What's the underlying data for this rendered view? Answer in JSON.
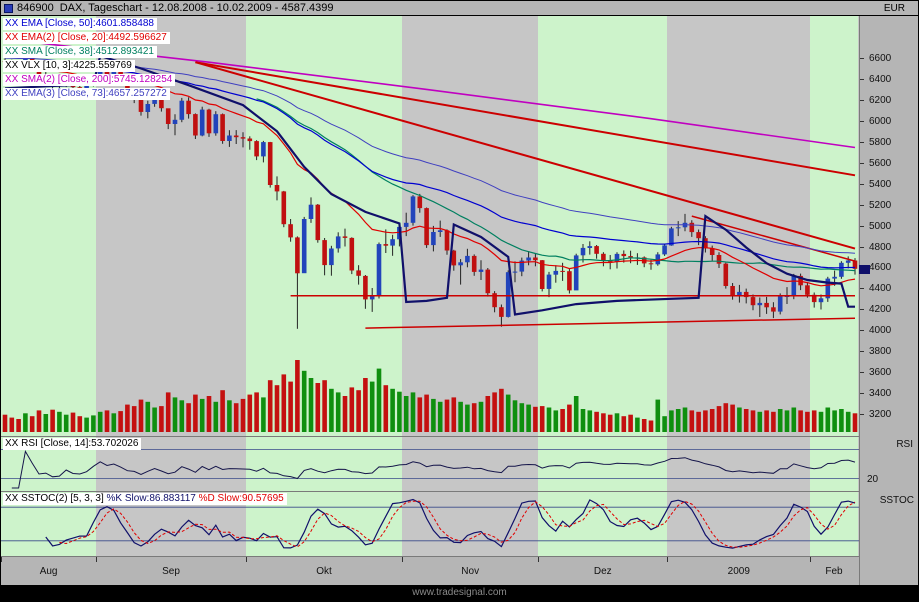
{
  "title_bar": {
    "instrument_id": "846900",
    "title": "DAX, Tageschart - 12.08.2008 - 10.02.2009 - 4587.4399",
    "currency": "EUR"
  },
  "indicators": [
    {
      "label": "XX EMA [Close, 50]:4601.858488",
      "color": "#0000d0"
    },
    {
      "label": "XX EMA(2) [Close, 20]:4492.596627",
      "color": "#e00000"
    },
    {
      "label": "XX SMA [Close, 38]:4512.893421",
      "color": "#008060"
    },
    {
      "label": "XX VLX [10, 3]:4225.559769",
      "color": "#000000"
    },
    {
      "label": "XX SMA(2) [Close, 200]:5745.128254",
      "color": "#c000c0"
    },
    {
      "label": "XX EMA(3) [Close, 73]:4657.257272",
      "color": "#4040c0"
    }
  ],
  "rsi_panel": {
    "label": "XX RSI [Close, 14]:53.702026",
    "axis_title": "RSI",
    "tick_label": "20"
  },
  "sstoc_panel": {
    "prefix": "XX SSTOC(2) [5, 3, 3] ",
    "k_label": "%K Slow:86.883117",
    "d_label": " %D Slow:90.57695",
    "axis_title": "SSTOC"
  },
  "watermark": "www.tradesignal.com",
  "colors": {
    "band_green": "#cdf3cb",
    "pane_gray": "#c6c6c6",
    "candle_up": "#2244bb",
    "candle_down": "#c01010",
    "wick": "#222222",
    "vol_up": "#0f8f0f",
    "vol_down": "#c41010",
    "ema50": "#0000d0",
    "ema20": "#e00000",
    "sma38": "#008060",
    "ema73": "#4040c0",
    "sma200": "#c000c0",
    "vlx": "#10106a",
    "drawing": "#cc0000",
    "rsi_line": "#15154a",
    "level_line": "#3a4a8a",
    "stoch_k": "#10106a",
    "stoch_d": "#e00000"
  },
  "chart_data": {
    "type": "candlestick",
    "instrument": "DAX 846900 Tageschart",
    "period": "12.08.2008 - 10.02.2009",
    "last_price": 4587.4399,
    "price_axis": {
      "unit": "EUR",
      "ticks": [
        6600,
        6400,
        6200,
        6000,
        5800,
        5600,
        5400,
        5200,
        5000,
        4800,
        4600,
        4400,
        4200,
        4000,
        3800,
        3600,
        3400,
        3200
      ]
    },
    "months": [
      {
        "label": "Aug",
        "days": 14,
        "band": "green"
      },
      {
        "label": "Sep",
        "days": 22,
        "band": "gray"
      },
      {
        "label": "Okt",
        "days": 23,
        "band": "green"
      },
      {
        "label": "Nov",
        "days": 20,
        "band": "gray"
      },
      {
        "label": "Dez",
        "days": 19,
        "band": "green"
      },
      {
        "label": "2009",
        "days": 21,
        "band": "gray"
      },
      {
        "label": "Feb",
        "days": 7,
        "band": "green"
      }
    ],
    "candles": {
      "first_open": 6570,
      "hlc": [
        [
          6598,
          6524,
          6561
        ],
        [
          6584,
          6502,
          6528
        ],
        [
          6556,
          6471,
          6521
        ],
        [
          6644,
          6498,
          6633
        ],
        [
          6652,
          6545,
          6569
        ],
        [
          6581,
          6406,
          6424
        ],
        [
          6470,
          6381,
          6432
        ],
        [
          6445,
          6313,
          6336
        ],
        [
          6385,
          6289,
          6343
        ],
        [
          6431,
          6322,
          6412
        ],
        [
          6439,
          6302,
          6321
        ],
        [
          6355,
          6259,
          6306
        ],
        [
          6368,
          6270,
          6336
        ],
        [
          6438,
          6328,
          6422
        ],
        [
          6539,
          6415,
          6518
        ],
        [
          6548,
          6401,
          6432
        ],
        [
          6489,
          6373,
          6467
        ],
        [
          6485,
          6348,
          6384
        ],
        [
          6391,
          6240,
          6263
        ],
        [
          6298,
          6169,
          6233
        ],
        [
          6240,
          6050,
          6085
        ],
        [
          6192,
          6024,
          6161
        ],
        [
          6262,
          6134,
          6234
        ],
        [
          6261,
          6088,
          6120
        ],
        [
          6117,
          5921,
          5970
        ],
        [
          6062,
          5863,
          6010
        ],
        [
          6219,
          5987,
          6192
        ],
        [
          6225,
          6021,
          6064
        ],
        [
          6071,
          5826,
          5860
        ],
        [
          6135,
          5852,
          6107
        ],
        [
          6115,
          5846,
          5881
        ],
        [
          6092,
          5858,
          6063
        ],
        [
          6070,
          5781,
          5807
        ],
        [
          5910,
          5751,
          5860
        ],
        [
          5911,
          5779,
          5844
        ],
        [
          5891,
          5746,
          5831
        ],
        [
          5852,
          5724,
          5806
        ],
        [
          5815,
          5625,
          5660
        ],
        [
          5808,
          5603,
          5797
        ],
        [
          5799,
          5362,
          5387
        ],
        [
          5469,
          5240,
          5326
        ],
        [
          5331,
          4984,
          5013
        ],
        [
          5062,
          4846,
          4887
        ],
        [
          4896,
          4014,
          4544
        ],
        [
          5082,
          4560,
          5062
        ],
        [
          5269,
          5025,
          5199
        ],
        [
          5206,
          4836,
          4861
        ],
        [
          4881,
          4525,
          4622
        ],
        [
          4806,
          4521,
          4781
        ],
        [
          4935,
          4741,
          4896
        ],
        [
          4971,
          4800,
          4882
        ],
        [
          4888,
          4536,
          4571
        ],
        [
          4621,
          4436,
          4519
        ],
        [
          4528,
          4205,
          4295
        ],
        [
          4403,
          4175,
          4334
        ],
        [
          4838,
          4303,
          4823
        ],
        [
          4963,
          4738,
          4808
        ],
        [
          4911,
          4711,
          4869
        ],
        [
          5026,
          4801,
          4987
        ],
        [
          5123,
          4899,
          5026
        ],
        [
          5291,
          4999,
          5278
        ],
        [
          5302,
          5123,
          5166
        ],
        [
          5172,
          4786,
          4813
        ],
        [
          4996,
          4753,
          4938
        ],
        [
          5047,
          4891,
          4954
        ],
        [
          4963,
          4721,
          4761
        ],
        [
          4768,
          4569,
          4620
        ],
        [
          4679,
          4436,
          4649
        ],
        [
          4778,
          4601,
          4710
        ],
        [
          4724,
          4520,
          4557
        ],
        [
          4668,
          4480,
          4579
        ],
        [
          4594,
          4321,
          4354
        ],
        [
          4374,
          4171,
          4220
        ],
        [
          4246,
          4034,
          4127
        ],
        [
          4571,
          4122,
          4554
        ],
        [
          4657,
          4459,
          4560
        ],
        [
          4694,
          4516,
          4665
        ],
        [
          4756,
          4620,
          4695
        ],
        [
          4737,
          4611,
          4669
        ],
        [
          4671,
          4371,
          4394
        ],
        [
          4557,
          4316,
          4531
        ],
        [
          4621,
          4454,
          4567
        ],
        [
          4644,
          4471,
          4564
        ],
        [
          4587,
          4351,
          4381
        ],
        [
          4731,
          4390,
          4715
        ],
        [
          4824,
          4647,
          4786
        ],
        [
          4849,
          4722,
          4804
        ],
        [
          4814,
          4683,
          4730
        ],
        [
          4745,
          4611,
          4663
        ],
        [
          4719,
          4582,
          4655
        ],
        [
          4744,
          4590,
          4729
        ],
        [
          4762,
          4646,
          4708
        ],
        [
          4760,
          4640,
          4696
        ],
        [
          4736,
          4624,
          4696
        ],
        [
          4705,
          4602,
          4639
        ],
        [
          4674,
          4577,
          4629
        ],
        [
          4745,
          4616,
          4724
        ],
        [
          4826,
          4710,
          4810
        ],
        [
          4988,
          4806,
          4973
        ],
        [
          5042,
          4899,
          4983
        ],
        [
          5111,
          4946,
          5026
        ],
        [
          5051,
          4891,
          4937
        ],
        [
          4962,
          4813,
          4879
        ],
        [
          4898,
          4742,
          4783
        ],
        [
          4808,
          4663,
          4719
        ],
        [
          4745,
          4594,
          4636
        ],
        [
          4645,
          4398,
          4422
        ],
        [
          4451,
          4292,
          4336
        ],
        [
          4433,
          4264,
          4366
        ],
        [
          4398,
          4256,
          4316
        ],
        [
          4341,
          4190,
          4239
        ],
        [
          4313,
          4126,
          4261
        ],
        [
          4318,
          4156,
          4219
        ],
        [
          4268,
          4116,
          4178
        ],
        [
          4352,
          4151,
          4326
        ],
        [
          4412,
          4251,
          4327
        ],
        [
          4538,
          4296,
          4519
        ],
        [
          4541,
          4383,
          4429
        ],
        [
          4460,
          4311,
          4338
        ],
        [
          4360,
          4216,
          4268
        ],
        [
          4341,
          4198,
          4305
        ],
        [
          4510,
          4271,
          4493
        ],
        [
          4570,
          4424,
          4510
        ],
        [
          4659,
          4491,
          4644
        ],
        [
          4705,
          4591,
          4666
        ],
        [
          4689,
          4531,
          4587
        ]
      ]
    },
    "volume": [
      24,
      20,
      18,
      26,
      22,
      30,
      25,
      31,
      28,
      24,
      27,
      22,
      20,
      23,
      28,
      30,
      26,
      29,
      38,
      36,
      45,
      42,
      34,
      36,
      55,
      48,
      44,
      40,
      52,
      46,
      50,
      42,
      58,
      44,
      40,
      46,
      52,
      55,
      48,
      72,
      65,
      80,
      70,
      100,
      85,
      75,
      68,
      72,
      60,
      55,
      50,
      62,
      58,
      75,
      70,
      88,
      65,
      60,
      56,
      50,
      55,
      48,
      52,
      46,
      42,
      45,
      48,
      42,
      38,
      40,
      42,
      50,
      55,
      60,
      52,
      44,
      40,
      38,
      35,
      36,
      34,
      30,
      32,
      38,
      50,
      32,
      30,
      28,
      26,
      24,
      26,
      22,
      24,
      20,
      18,
      16,
      45,
      22,
      30,
      32,
      34,
      30,
      28,
      30,
      32,
      36,
      40,
      38,
      34,
      32,
      30,
      28,
      30,
      28,
      32,
      30,
      34,
      30,
      28,
      30,
      28,
      34,
      30,
      32,
      28,
      26
    ],
    "overlays": {
      "ema50": {
        "period": 50,
        "seed": 6520,
        "last": 4601.858488
      },
      "ema20": {
        "period": 20,
        "seed": 6480,
        "last": 4492.596627
      },
      "sma38": {
        "period": 38,
        "last": 4512.893421
      },
      "ema73": {
        "period": 73,
        "seed": 6600,
        "last": 4657.257272
      },
      "sma200": {
        "points": [
          [
            0,
            6780
          ],
          [
            30,
            6560
          ],
          [
            62,
            6300
          ],
          [
            95,
            6020
          ],
          [
            125,
            5745
          ]
        ],
        "last": 5745.128254
      },
      "vlx": {
        "last": 4225.559769,
        "points": [
          [
            0,
            6310
          ],
          [
            6,
            6330
          ],
          [
            13,
            6350
          ],
          [
            14,
            6620
          ],
          [
            20,
            6500
          ],
          [
            27,
            6340
          ],
          [
            35,
            6150
          ],
          [
            40,
            5900
          ],
          [
            44,
            5560
          ],
          [
            48,
            5300
          ],
          [
            53,
            5130
          ],
          [
            58,
            5020
          ],
          [
            59,
            4270
          ],
          [
            62,
            4280
          ],
          [
            65,
            4310
          ],
          [
            66,
            5010
          ],
          [
            70,
            4890
          ],
          [
            74,
            4700
          ],
          [
            75,
            4150
          ],
          [
            79,
            4190
          ],
          [
            84,
            4250
          ],
          [
            90,
            4280
          ],
          [
            96,
            4295
          ],
          [
            102,
            4310
          ],
          [
            103,
            5090
          ],
          [
            106,
            4960
          ],
          [
            109,
            4790
          ],
          [
            112,
            4640
          ],
          [
            115,
            4540
          ],
          [
            118,
            4480
          ],
          [
            121,
            4455
          ],
          [
            123,
            4445
          ],
          [
            124,
            4225
          ],
          [
            125,
            4225
          ]
        ]
      }
    },
    "drawings": [
      {
        "type": "trendline",
        "width": 2,
        "from": [
          28,
          6560
        ],
        "to": [
          125,
          5480
        ]
      },
      {
        "type": "trendline",
        "width": 2,
        "from": [
          28,
          6560
        ],
        "to": [
          125,
          4780
        ]
      },
      {
        "type": "trendline",
        "width": 1.5,
        "from": [
          101,
          5090
        ],
        "to": [
          125,
          4660
        ]
      },
      {
        "type": "horizontal",
        "width": 1.5,
        "from": [
          42,
          4330
        ],
        "to": [
          125,
          4330
        ]
      },
      {
        "type": "trendline",
        "width": 1.5,
        "from": [
          53,
          4020
        ],
        "to": [
          125,
          4115
        ]
      }
    ],
    "rsi": {
      "period": 14,
      "levels": [
        80,
        20
      ],
      "last": 53.702026
    },
    "sstoc": {
      "k": 5,
      "slow": 3,
      "d": 3,
      "levels": [
        80,
        20
      ],
      "k_last": 86.883117,
      "d_last": 90.57695
    }
  }
}
